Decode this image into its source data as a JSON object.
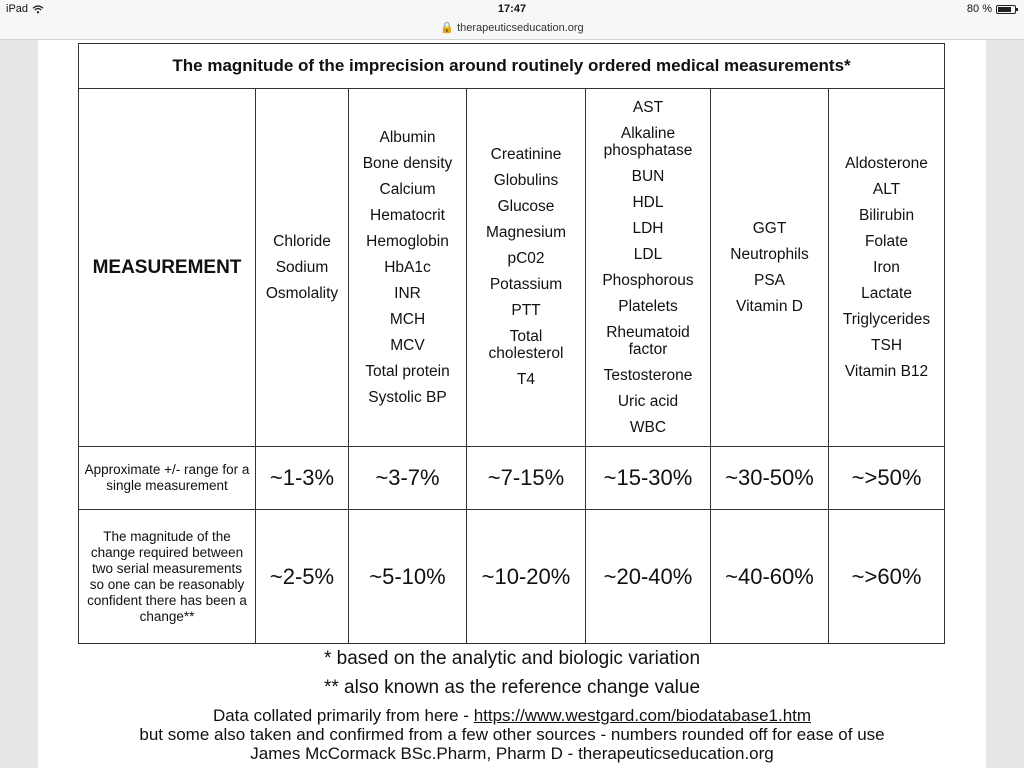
{
  "status_bar": {
    "device": "iPad",
    "time": "17:47",
    "url": "therapeuticseducation.org",
    "battery_text": "80 %",
    "battery_level": 0.8
  },
  "table": {
    "title": "The magnitude of the imprecision around routinely ordered medical measurements*",
    "measurement_label": "MEASUREMENT",
    "columns": [
      [
        "Chloride",
        "Sodium",
        "Osmolality"
      ],
      [
        "Albumin",
        "Bone density",
        "Calcium",
        "Hematocrit",
        "Hemoglobin",
        "HbA1c",
        "INR",
        "MCH",
        "MCV",
        "Total protein",
        "Systolic BP"
      ],
      [
        "Creatinine",
        "Globulins",
        "Glucose",
        "Magnesium",
        "pC02",
        "Potassium",
        "PTT",
        "Total cholesterol",
        "T4"
      ],
      [
        "AST",
        "Alkaline phosphatase",
        "BUN",
        "HDL",
        "LDH",
        "LDL",
        "Phosphorous",
        "Platelets",
        "Rheumatoid factor",
        "Testosterone",
        "Uric acid",
        "WBC"
      ],
      [
        "GGT",
        "Neutrophils",
        "PSA",
        "Vitamin D"
      ],
      [
        "Aldosterone",
        "ALT",
        "Bilirubin",
        "Folate",
        "Iron",
        "Lactate",
        "Triglycerides",
        "TSH",
        "Vitamin B12"
      ]
    ],
    "range_label": "Approximate +/- range for a single measurement",
    "range_values": [
      "~1-3%",
      "~3-7%",
      "~7-15%",
      "~15-30%",
      "~30-50%",
      "~>50%"
    ],
    "change_label": "The magnitude of the change required between two serial measurements so one can be reasonably confident there has been a change**",
    "change_values": [
      "~2-5%",
      "~5-10%",
      "~10-20%",
      "~20-40%",
      "~40-60%",
      "~>60%"
    ]
  },
  "notes": {
    "footnote_1": "* based on the analytic and biologic variation",
    "footnote_2": "** also known as the reference change value",
    "source_prefix": "Data collated primarily from here  - ",
    "source_link": "https://www.westgard.com/biodatabase1.htm",
    "source_line_2": "but some also taken and confirmed from a few other sources - numbers rounded off for ease of use",
    "author": "James McCormack BSc.Pharm, Pharm D - therapeuticseducation.org"
  }
}
